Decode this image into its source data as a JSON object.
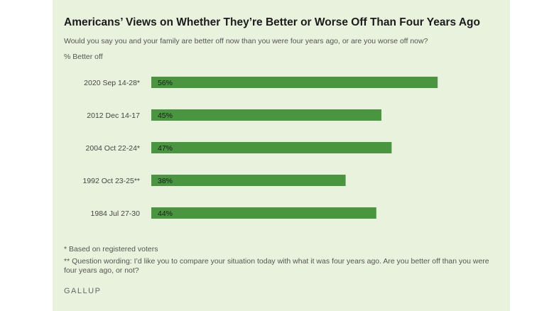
{
  "chart_data": {
    "type": "bar",
    "orientation": "horizontal",
    "title": "Americans’ Views on Whether They’re Better or Worse Off Than Four Years Ago",
    "subtitle": "Would you say you and your family are better off now than you were four years ago, or are you worse off now?",
    "measure_label": "% Better off",
    "categories": [
      "2020 Sep 14-28*",
      "2012 Dec 14-17",
      "2004 Oct 22-24*",
      "1992 Oct 23-25**",
      "1984 Jul 27-30"
    ],
    "values": [
      56,
      45,
      47,
      38,
      44
    ],
    "value_labels": [
      "56%",
      "45%",
      "47%",
      "38%",
      "44%"
    ],
    "xlim": [
      0,
      100
    ],
    "bar_color": "#4a9640",
    "grid": false
  },
  "notes": {
    "registered": "* Based on registered voters",
    "wording": "** Question wording: I’d like you to compare your situation today with what it was four years ago. Are you better off than you were four years ago, or not?"
  },
  "brand": "GALLUP",
  "colors": {
    "panel_bg": "#e8f2dc",
    "bar": "#4a9640"
  }
}
